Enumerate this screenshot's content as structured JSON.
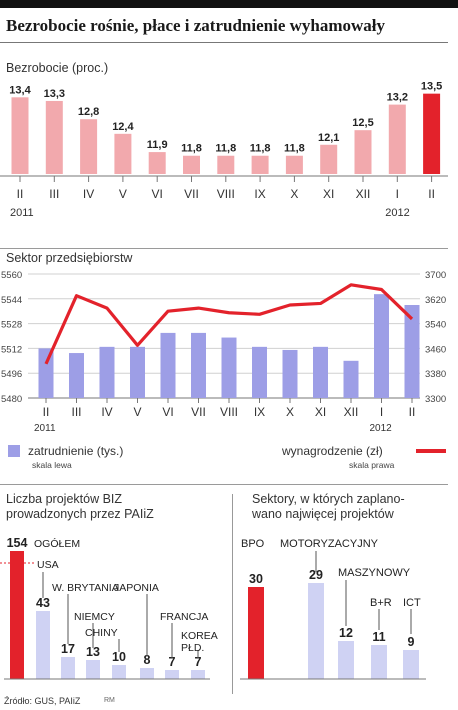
{
  "title": "Bezrobocie rośnie, płace i zatrudnienie wyhamowały",
  "source": "Źródło: GUS, PAIiZ",
  "credit": "RM",
  "colors": {
    "pink": "#f2a9ad",
    "red": "#e3222b",
    "blue": "#9d9ee6",
    "lightblue": "#cfd2f3",
    "line": "#e3222b"
  },
  "chart_data": [
    {
      "type": "bar",
      "title": "Bezrobocie (proc.)",
      "categories": [
        "II",
        "III",
        "IV",
        "V",
        "VI",
        "VII",
        "VIII",
        "IX",
        "X",
        "XI",
        "XII",
        "I",
        "II"
      ],
      "year_labels": [
        "2011",
        "2012"
      ],
      "values": [
        13.4,
        13.3,
        12.8,
        12.4,
        11.9,
        11.8,
        11.8,
        11.8,
        11.8,
        12.1,
        12.5,
        13.2,
        13.5
      ],
      "value_labels": [
        "13,4",
        "13,3",
        "12,8",
        "12,4",
        "11,9",
        "11,8",
        "11,8",
        "11,8",
        "11,8",
        "12,1",
        "12,5",
        "13,2",
        "13,5"
      ],
      "highlight_last": true,
      "ylim": [
        11.3,
        13.6
      ]
    },
    {
      "type": "bar+line",
      "title": "Sektor przedsiębiorstw",
      "categories": [
        "II",
        "III",
        "IV",
        "V",
        "VI",
        "VII",
        "VIII",
        "IX",
        "X",
        "XI",
        "XII",
        "I",
        "II"
      ],
      "year_labels": [
        "2011",
        "2012"
      ],
      "left_axis": {
        "ticks": [
          "5480",
          "5496",
          "5512",
          "5528",
          "5544",
          "5560"
        ],
        "ylim": [
          5480,
          5560
        ],
        "note": "skala lewa"
      },
      "right_axis": {
        "ticks": [
          "3300",
          "3380",
          "3460",
          "3540",
          "3620",
          "3700"
        ],
        "ylim": [
          3300,
          3700
        ],
        "note": "skala prawa"
      },
      "series": [
        {
          "name": "zatrudnienie (tys.)",
          "kind": "bar",
          "axis": "left",
          "values": [
            5512,
            5509,
            5513,
            5513,
            5522,
            5522,
            5519,
            5513,
            5511,
            5513,
            5504,
            5547,
            5540
          ]
        },
        {
          "name": "wynagrodzenie (zł)",
          "kind": "line",
          "axis": "right",
          "values": [
            3410,
            3630,
            3590,
            3470,
            3580,
            3590,
            3575,
            3570,
            3600,
            3605,
            3665,
            3650,
            3555
          ]
        }
      ]
    },
    {
      "type": "bar",
      "title": "Liczba projektów BIZ\nprowadzonych przez PAIiZ",
      "categories": [
        "OGÓŁEM",
        "USA",
        "W. BRYTANIA",
        "NIEMCY",
        "CHINY",
        "JAPONIA",
        "FRANCJA",
        "KOREA PŁD."
      ],
      "category_labels": [
        "OGÓŁEM",
        "USA",
        "W. BRYTANIA",
        "NIEMCY",
        "CHINY",
        "JAPONIA",
        "FRANCJA",
        "KOREA\nPŁD."
      ],
      "values": [
        154,
        43,
        17,
        13,
        10,
        8,
        7,
        7
      ]
    },
    {
      "type": "bar",
      "title": "Sektory, w których zaplano-\nwano najwięcej projektów",
      "categories": [
        "BPO",
        "MOTORYZACYJNY",
        "MASZYNOWY",
        "B+R",
        "ICT"
      ],
      "values": [
        30,
        29,
        12,
        11,
        9
      ]
    }
  ]
}
